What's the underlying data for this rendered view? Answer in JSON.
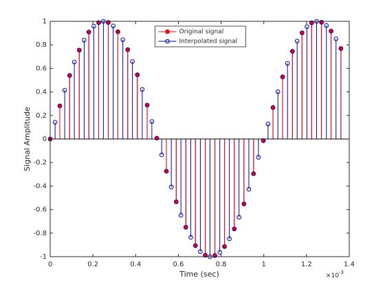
{
  "chart_data": {
    "type": "stem",
    "xlabel": "Time (sec)",
    "ylabel": "Signal Amplitude",
    "x_exponent": {
      "base": "×10",
      "power": "-3"
    },
    "xlim": [
      0,
      0.0014
    ],
    "xticks": [
      0,
      {
        "value": 0.0002,
        "label": "0.2"
      },
      {
        "value": 0.0004,
        "label": "0.4"
      },
      {
        "value": 0.0006,
        "label": "0.6"
      },
      {
        "value": 0.0008,
        "label": "0.8"
      },
      {
        "value": 0.001,
        "label": "1"
      },
      {
        "value": 0.0012,
        "label": "1.2"
      },
      {
        "value": 0.0014,
        "label": "1.4"
      }
    ],
    "ylim": [
      -1,
      1
    ],
    "yticks": [
      -1,
      -0.8,
      -0.6,
      -0.4,
      -0.2,
      0,
      0.2,
      0.4,
      0.6,
      0.8,
      1
    ],
    "legend": "north",
    "series": [
      {
        "name": "Original signal",
        "color": "#ff0000",
        "marker_fill": "#ff0000",
        "x": [
          0,
          4.5e-05,
          9.1e-05,
          0.000136,
          0.000181,
          0.000227,
          0.000272,
          0.000317,
          0.000363,
          0.000408,
          0.000454,
          0.000499,
          0.000544,
          0.00059,
          0.000635,
          0.00068,
          0.000726,
          0.000771,
          0.000816,
          0.000862,
          0.000907,
          0.000952,
          0.000998,
          0.001043,
          0.001088,
          0.001134,
          0.001179,
          0.001224,
          0.00127,
          0.001315,
          0.001361
        ],
        "values": [
          0,
          0.281,
          0.54,
          0.755,
          0.909,
          0.989,
          0.99,
          0.911,
          0.759,
          0.546,
          0.288,
          0.007,
          -0.274,
          -0.534,
          -0.75,
          -0.906,
          -0.988,
          -0.991,
          -0.914,
          -0.764,
          -0.552,
          -0.295,
          -0.014,
          0.267,
          0.528,
          0.745,
          0.902,
          0.987,
          0.992,
          0.917,
          0.769
        ]
      },
      {
        "name": "Interpolated signal",
        "color": "#0000b0",
        "marker_fill": "none",
        "x": [
          0,
          2.3e-05,
          4.5e-05,
          6.8e-05,
          9.1e-05,
          0.000113,
          0.000136,
          0.000159,
          0.000181,
          0.000204,
          0.000227,
          0.000249,
          0.000272,
          0.000295,
          0.000317,
          0.00034,
          0.000363,
          0.000385,
          0.000408,
          0.000431,
          0.000454,
          0.000476,
          0.000499,
          0.000522,
          0.000544,
          0.000567,
          0.00059,
          0.000612,
          0.000635,
          0.000658,
          0.00068,
          0.000703,
          0.000726,
          0.000748,
          0.000771,
          0.000794,
          0.000816,
          0.000839,
          0.000862,
          0.000884,
          0.000907,
          0.00093,
          0.000952,
          0.000975,
          0.000998,
          0.00102,
          0.001043,
          0.001066,
          0.001088,
          0.001111,
          0.001134,
          0.001156,
          0.001179,
          0.001202,
          0.001224,
          0.001247,
          0.00127,
          0.001293,
          0.001315,
          0.001338,
          0.001361
        ],
        "values": [
          0,
          0.142,
          0.281,
          0.415,
          0.54,
          0.654,
          0.755,
          0.84,
          0.909,
          0.959,
          0.989,
          1,
          0.99,
          0.961,
          0.911,
          0.844,
          0.759,
          0.659,
          0.546,
          0.421,
          0.288,
          0.149,
          0.007,
          -0.135,
          -0.274,
          -0.408,
          -0.534,
          -0.648,
          -0.75,
          -0.836,
          -0.906,
          -0.957,
          -0.988,
          -1,
          -0.991,
          -0.963,
          -0.914,
          -0.848,
          -0.764,
          -0.664,
          -0.552,
          -0.427,
          -0.295,
          -0.156,
          -0.014,
          0.128,
          0.267,
          0.402,
          0.528,
          0.643,
          0.745,
          0.832,
          0.902,
          0.955,
          0.987,
          1,
          0.992,
          0.965,
          0.917,
          0.851,
          0.769
        ]
      }
    ]
  }
}
